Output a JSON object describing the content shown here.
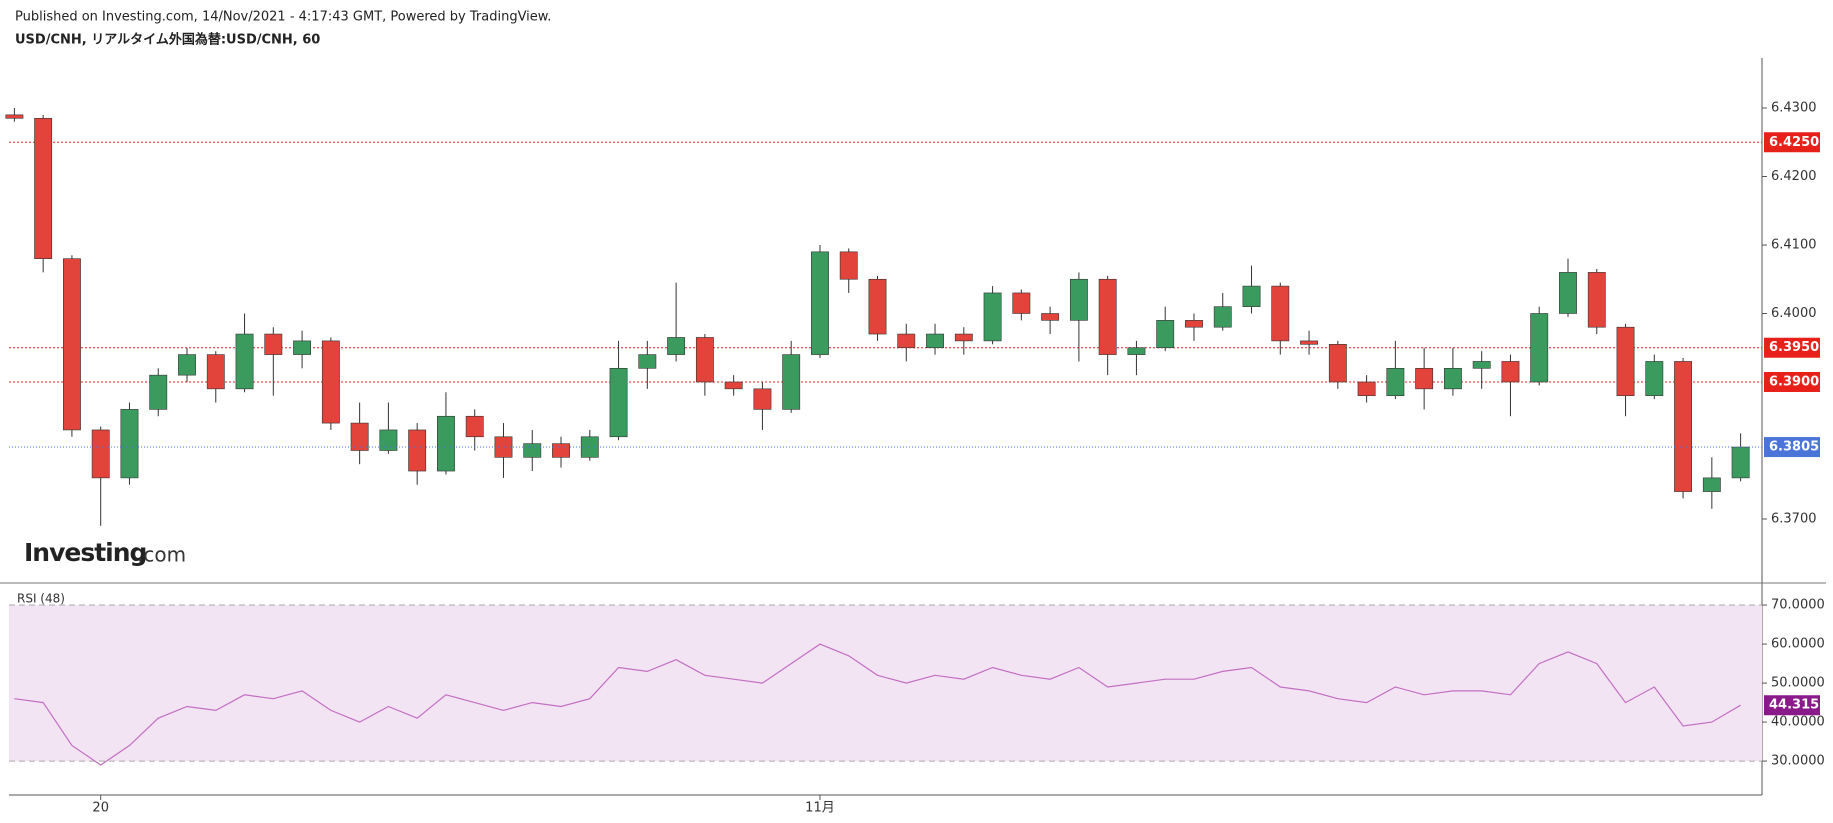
{
  "header": {
    "published": "Published on Investing.com, 14/Nov/2021 - 4:17:43 GMT, Powered by TradingView.",
    "symbol": "USD/CNH, リアルタイム外国為替:USD/CNH, 60"
  },
  "logo": {
    "brand": "Investing",
    "suffix": ".com"
  },
  "chart_data": [
    {
      "type": "candlestick",
      "categories": [
        null,
        null,
        null,
        "20",
        null,
        null,
        null,
        null,
        null,
        null,
        null,
        null,
        null,
        null,
        null,
        null,
        null,
        null,
        null,
        null,
        null,
        null,
        null,
        null,
        null,
        null,
        null,
        null,
        "11月",
        null,
        null,
        null,
        null,
        null,
        null,
        null,
        null,
        null,
        null,
        null,
        null,
        null,
        null,
        null,
        null,
        null,
        null,
        null,
        null,
        null,
        null,
        null,
        null,
        null,
        null,
        null,
        null,
        null,
        null,
        null,
        null
      ],
      "open": [
        6.429,
        6.4285,
        6.408,
        6.383,
        6.376,
        6.386,
        6.391,
        6.394,
        6.389,
        6.397,
        6.394,
        6.396,
        6.384,
        6.38,
        6.383,
        6.377,
        6.385,
        6.382,
        6.379,
        6.381,
        6.379,
        6.382,
        6.392,
        6.394,
        6.3965,
        6.39,
        6.389,
        6.386,
        6.394,
        6.409,
        6.405,
        6.397,
        6.395,
        6.397,
        6.396,
        6.403,
        6.4,
        6.399,
        6.405,
        6.394,
        6.395,
        6.399,
        6.398,
        6.401,
        6.404,
        6.396,
        6.3955,
        6.39,
        6.388,
        6.392,
        6.389,
        6.392,
        6.393,
        6.39,
        6.4,
        6.406,
        6.398,
        6.388,
        6.393,
        6.374,
        6.376
      ],
      "high": [
        6.43,
        6.429,
        6.4085,
        6.3835,
        6.387,
        6.392,
        6.395,
        6.3945,
        6.4,
        6.398,
        6.3975,
        6.3965,
        6.387,
        6.387,
        6.384,
        6.3885,
        6.386,
        6.384,
        6.383,
        6.382,
        6.383,
        6.396,
        6.396,
        6.4045,
        6.397,
        6.391,
        6.39,
        6.396,
        6.41,
        6.4095,
        6.4055,
        6.3985,
        6.3985,
        6.398,
        6.404,
        6.4035,
        6.401,
        6.406,
        6.4055,
        6.396,
        6.401,
        6.4,
        6.403,
        6.407,
        6.4045,
        6.3975,
        6.396,
        6.391,
        6.396,
        6.395,
        6.395,
        6.3945,
        6.394,
        6.401,
        6.408,
        6.4065,
        6.3985,
        6.394,
        6.3935,
        6.379,
        6.3825
      ],
      "low": [
        6.428,
        6.406,
        6.382,
        6.369,
        6.375,
        6.385,
        6.39,
        6.387,
        6.3885,
        6.388,
        6.392,
        6.383,
        6.378,
        6.3795,
        6.375,
        6.3765,
        6.38,
        6.376,
        6.377,
        6.3775,
        6.3785,
        6.3815,
        6.389,
        6.393,
        6.388,
        6.388,
        6.383,
        6.3855,
        6.3935,
        6.403,
        6.396,
        6.393,
        6.394,
        6.394,
        6.3955,
        6.399,
        6.397,
        6.393,
        6.391,
        6.391,
        6.3945,
        6.396,
        6.3975,
        6.4,
        6.394,
        6.394,
        6.389,
        6.387,
        6.3875,
        6.386,
        6.388,
        6.389,
        6.385,
        6.3895,
        6.3995,
        6.397,
        6.385,
        6.3875,
        6.373,
        6.3715,
        6.3755
      ],
      "close": [
        6.4285,
        6.408,
        6.383,
        6.376,
        6.386,
        6.391,
        6.394,
        6.389,
        6.397,
        6.394,
        6.396,
        6.384,
        6.38,
        6.383,
        6.377,
        6.385,
        6.382,
        6.379,
        6.381,
        6.379,
        6.382,
        6.392,
        6.394,
        6.3965,
        6.39,
        6.389,
        6.386,
        6.394,
        6.409,
        6.405,
        6.397,
        6.395,
        6.397,
        6.396,
        6.403,
        6.4,
        6.399,
        6.405,
        6.394,
        6.395,
        6.399,
        6.398,
        6.401,
        6.404,
        6.396,
        6.3955,
        6.39,
        6.388,
        6.392,
        6.389,
        6.392,
        6.393,
        6.39,
        6.4,
        6.406,
        6.398,
        6.388,
        6.393,
        6.374,
        6.376,
        6.3805
      ],
      "up_color": "#3b9b5f",
      "down_color": "#e2433b",
      "ylim": [
        6.3608,
        6.4373
      ],
      "yticks": [
        {
          "value": 6.43,
          "label": "6.4300"
        },
        {
          "value": 6.42,
          "label": "6.4200"
        },
        {
          "value": 6.41,
          "label": "6.4100"
        },
        {
          "value": 6.4,
          "label": "6.4000"
        },
        {
          "value": 6.37,
          "label": "6.3700"
        }
      ],
      "levels": [
        {
          "value": 6.425,
          "label": "6.4250"
        },
        {
          "value": 6.395,
          "label": "6.3950"
        },
        {
          "value": 6.39,
          "label": "6.3900"
        }
      ],
      "level_color": "#e8201a",
      "last_color": "#4a74d8"
    },
    {
      "type": "line",
      "title": "RSI (48)",
      "values": [
        46,
        45,
        34,
        29,
        34,
        41,
        44,
        43,
        47,
        46,
        48,
        43,
        40,
        44,
        41,
        47,
        45,
        43,
        45,
        44,
        46,
        54,
        53,
        56,
        52,
        51,
        50,
        55,
        60,
        57,
        52,
        50,
        52,
        51,
        54,
        52,
        51,
        54,
        49,
        50,
        51,
        51,
        53,
        54,
        49,
        48,
        46,
        45,
        49,
        47,
        48,
        48,
        47,
        55,
        58,
        55,
        45,
        49,
        39,
        40,
        44.3153
      ],
      "color": "#c36fc3",
      "label_color": "#8a1a8a",
      "band_color": "#f2e4f2",
      "band": true,
      "ylim": [
        21.3,
        75.4
      ],
      "yticks": [
        {
          "value": 70,
          "label": "70.0000"
        },
        {
          "value": 60,
          "label": "60.0000"
        },
        {
          "value": 50,
          "label": "50.0000"
        },
        {
          "value": 40,
          "label": "40.0000"
        },
        {
          "value": 30,
          "label": "30.0000"
        }
      ]
    }
  ]
}
